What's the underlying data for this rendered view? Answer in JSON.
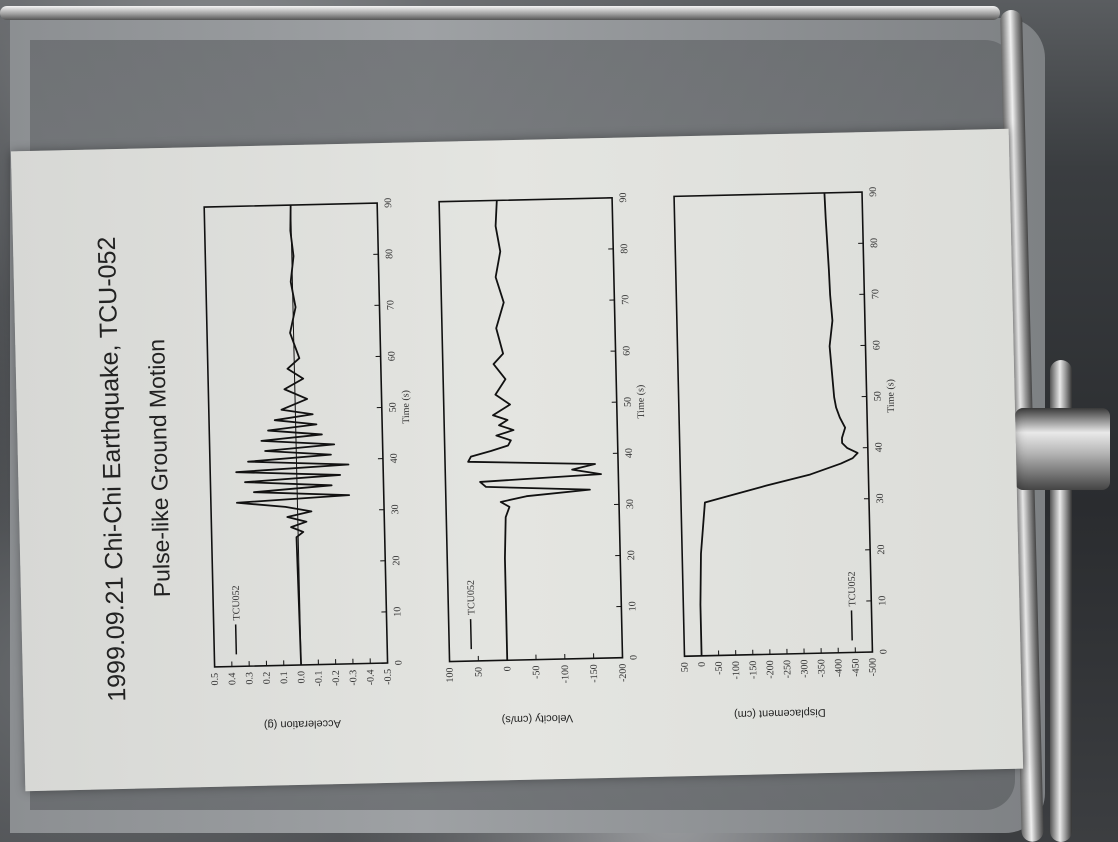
{
  "sign": {
    "title": "1999.09.21 Chi-Chi Earthquake, TCU-052",
    "subtitle": "Pulse-like Ground Motion"
  },
  "chart_data": [
    {
      "type": "line",
      "ylabel": "Acceleration (g)",
      "xlabel": "Time (s)",
      "xlim": [
        0,
        90
      ],
      "ylim": [
        -0.5,
        0.5
      ],
      "xticks": [
        "0",
        "10",
        "20",
        "30",
        "40",
        "50",
        "60",
        "70",
        "80",
        "90"
      ],
      "yticks": [
        "0.5",
        "0.4",
        "0.3",
        "0.2",
        "0.1",
        "0.0",
        "-0.1",
        "-0.2",
        "-0.3",
        "-0.4",
        "-0.5"
      ],
      "legend": "TCU052",
      "legend_position": "top-left",
      "series": [
        {
          "x": [
            0,
            25,
            26,
            27,
            28,
            29,
            30,
            31,
            32,
            33,
            34,
            35,
            36,
            37,
            38,
            39,
            40,
            41,
            42,
            43,
            44,
            45,
            46,
            47,
            48,
            49,
            50,
            52,
            54,
            56,
            58,
            60,
            65,
            70,
            75,
            80,
            85,
            90
          ],
          "y": [
            0,
            0.01,
            -0.03,
            0.04,
            -0.05,
            0.06,
            -0.08,
            0.07,
            0.35,
            -0.3,
            0.25,
            -0.2,
            0.3,
            -0.25,
            0.35,
            -0.3,
            0.28,
            -0.2,
            0.18,
            -0.22,
            0.2,
            -0.15,
            0.16,
            -0.12,
            0.12,
            -0.1,
            0.08,
            -0.07,
            0.06,
            -0.05,
            0.04,
            -0.03,
            0.02,
            -0.015,
            0.01,
            -0.01,
            0.005,
            0
          ]
        }
      ]
    },
    {
      "type": "line",
      "ylabel": "Velocity (cm/s)",
      "xlabel": "Time (s)",
      "xlim": [
        0,
        90
      ],
      "ylim": [
        -200,
        100
      ],
      "xticks": [
        "0",
        "10",
        "20",
        "30",
        "40",
        "50",
        "60",
        "70",
        "80",
        "90"
      ],
      "yticks": [
        "100",
        "50",
        "0",
        "-50",
        "-100",
        "-150",
        "-200"
      ],
      "legend": "TCU052",
      "legend_position": "top-left",
      "series": [
        {
          "x": [
            0,
            10,
            20,
            28,
            30,
            31,
            32,
            33,
            34,
            35,
            36,
            37,
            38,
            39,
            40,
            41,
            42,
            43,
            44,
            45,
            46,
            47,
            48,
            50,
            52,
            55,
            58,
            60,
            65,
            70,
            75,
            80,
            85,
            90
          ],
          "y": [
            0,
            0,
            0,
            -3,
            -10,
            5,
            -40,
            -150,
            30,
            40,
            -170,
            -120,
            -160,
            60,
            55,
            20,
            -10,
            -15,
            10,
            -20,
            5,
            -10,
            15,
            -15,
            10,
            -8,
            12,
            -5,
            6,
            -8,
            5,
            -4,
            3,
            0
          ]
        }
      ]
    },
    {
      "type": "line",
      "ylabel": "Displacement (cm)",
      "xlabel": "Time (s)",
      "xlim": [
        0,
        90
      ],
      "ylim": [
        -500,
        50
      ],
      "xticks": [
        "0",
        "10",
        "20",
        "30",
        "40",
        "50",
        "60",
        "70",
        "80",
        "90"
      ],
      "yticks": [
        "50",
        "0",
        "-50",
        "-100",
        "-150",
        "-200",
        "-250",
        "-300",
        "-350",
        "-400",
        "-450",
        "-500"
      ],
      "legend": "TCU052",
      "legend_position": "bottom-left",
      "series": [
        {
          "x": [
            0,
            10,
            20,
            30,
            31,
            33,
            35,
            37,
            38,
            39,
            40,
            41,
            42,
            44,
            46,
            48,
            50,
            55,
            60,
            65,
            70,
            75,
            80,
            85,
            90
          ],
          "y": [
            0,
            0,
            -5,
            -20,
            -80,
            -200,
            -330,
            -420,
            -455,
            -470,
            -440,
            -425,
            -425,
            -435,
            -420,
            -410,
            -405,
            -400,
            -395,
            -405,
            -400,
            -398,
            -395,
            -392,
            -390
          ]
        }
      ]
    }
  ]
}
